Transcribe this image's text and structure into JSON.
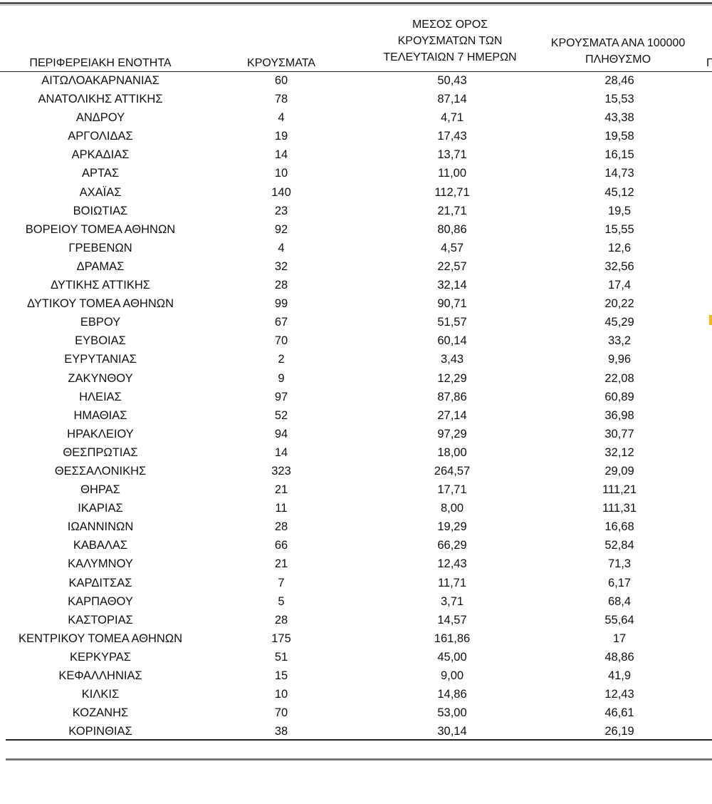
{
  "table": {
    "headers": {
      "region": [
        "ΠΕΡΙΦΕΡΕΙΑΚΗ ΕΝΟΤΗΤΑ"
      ],
      "cases": [
        "ΚΡΟΥΣΜΑΤΑ"
      ],
      "avg7": [
        "ΜΕΣΟΣ ΟΡΟΣ",
        "ΚΡΟΥΣΜΑΤΩΝ ΤΩΝ",
        "ΤΕΛΕΥΤΑΙΩΝ 7 ΗΜΕΡΩΝ"
      ],
      "per100k": [
        "ΚΡΟΥΣΜΑΤΑ ΑΝΑ 100000",
        "ΠΛΗΘΥΣΜΟ"
      ],
      "extra": "Π"
    },
    "rows": [
      [
        "ΑΙΤΩΛΟΑΚΑΡΝΑΝΙΑΣ",
        "60",
        "50,43",
        "28,46"
      ],
      [
        "ΑΝΑΤΟΛΙΚΗΣ ΑΤΤΙΚΗΣ",
        "78",
        "87,14",
        "15,53"
      ],
      [
        "ΑΝΔΡΟΥ",
        "4",
        "4,71",
        "43,38"
      ],
      [
        "ΑΡΓΟΛΙΔΑΣ",
        "19",
        "17,43",
        "19,58"
      ],
      [
        "ΑΡΚΑΔΙΑΣ",
        "14",
        "13,71",
        "16,15"
      ],
      [
        "ΑΡΤΑΣ",
        "10",
        "11,00",
        "14,73"
      ],
      [
        "ΑΧΑΪΑΣ",
        "140",
        "112,71",
        "45,12"
      ],
      [
        "ΒΟΙΩΤΙΑΣ",
        "23",
        "21,71",
        "19,5"
      ],
      [
        "ΒΟΡΕΙΟΥ ΤΟΜΕΑ ΑΘΗΝΩΝ",
        "92",
        "80,86",
        "15,55"
      ],
      [
        "ΓΡΕΒΕΝΩΝ",
        "4",
        "4,57",
        "12,6"
      ],
      [
        "ΔΡΑΜΑΣ",
        "32",
        "22,57",
        "32,56"
      ],
      [
        "ΔΥΤΙΚΗΣ ΑΤΤΙΚΗΣ",
        "28",
        "32,14",
        "17,4"
      ],
      [
        "ΔΥΤΙΚΟΥ ΤΟΜΕΑ ΑΘΗΝΩΝ",
        "99",
        "90,71",
        "20,22"
      ],
      [
        "ΕΒΡΟΥ",
        "67",
        "51,57",
        "45,29"
      ],
      [
        "ΕΥΒΟΙΑΣ",
        "70",
        "60,14",
        "33,2"
      ],
      [
        "ΕΥΡΥΤΑΝΙΑΣ",
        "2",
        "3,43",
        "9,96"
      ],
      [
        "ΖΑΚΥΝΘΟΥ",
        "9",
        "12,29",
        "22,08"
      ],
      [
        "ΗΛΕΙΑΣ",
        "97",
        "87,86",
        "60,89"
      ],
      [
        "ΗΜΑΘΙΑΣ",
        "52",
        "27,14",
        "36,98"
      ],
      [
        "ΗΡΑΚΛΕΙΟΥ",
        "94",
        "97,29",
        "30,77"
      ],
      [
        "ΘΕΣΠΡΩΤΙΑΣ",
        "14",
        "18,00",
        "32,12"
      ],
      [
        "ΘΕΣΣΑΛΟΝΙΚΗΣ",
        "323",
        "264,57",
        "29,09"
      ],
      [
        "ΘΗΡΑΣ",
        "21",
        "17,71",
        "111,21"
      ],
      [
        "ΙΚΑΡΙΑΣ",
        "11",
        "8,00",
        "111,31"
      ],
      [
        "ΙΩΑΝΝΙΝΩΝ",
        "28",
        "19,29",
        "16,68"
      ],
      [
        "ΚΑΒΑΛΑΣ",
        "66",
        "66,29",
        "52,84"
      ],
      [
        "ΚΑΛΥΜΝΟΥ",
        "21",
        "12,43",
        "71,3"
      ],
      [
        "ΚΑΡΔΙΤΣΑΣ",
        "7",
        "11,71",
        "6,17"
      ],
      [
        "ΚΑΡΠΑΘΟΥ",
        "5",
        "3,71",
        "68,4"
      ],
      [
        "ΚΑΣΤΟΡΙΑΣ",
        "28",
        "14,57",
        "55,64"
      ],
      [
        "ΚΕΝΤΡΙΚΟΥ ΤΟΜΕΑ ΑΘΗΝΩΝ",
        "175",
        "161,86",
        "17"
      ],
      [
        "ΚΕΡΚΥΡΑΣ",
        "51",
        "45,00",
        "48,86"
      ],
      [
        "ΚΕΦΑΛΛΗΝΙΑΣ",
        "15",
        "9,00",
        "41,9"
      ],
      [
        "ΚΙΛΚΙΣ",
        "10",
        "14,86",
        "12,43"
      ],
      [
        "ΚΟΖΑΝΗΣ",
        "70",
        "53,00",
        "46,61"
      ],
      [
        "ΚΟΡΙΝΘΙΑΣ",
        "38",
        "30,14",
        "26,19"
      ]
    ]
  },
  "colors": {
    "text": "#111111",
    "rule": "#222222",
    "highlight_mark": "#f2b61e"
  }
}
